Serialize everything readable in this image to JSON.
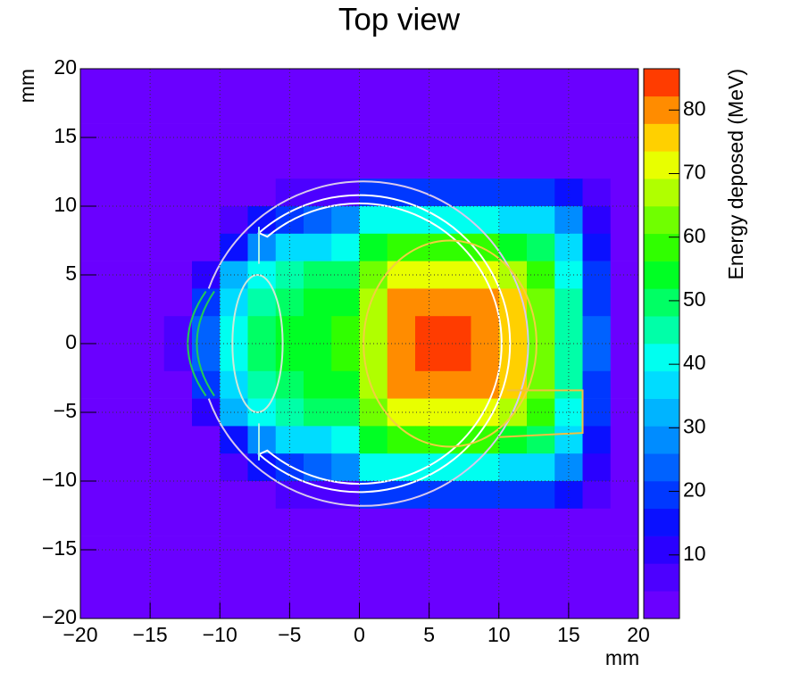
{
  "chart_data": {
    "type": "heatmap",
    "title": "Top view",
    "x_label": "mm",
    "y_label": "mm",
    "z_label": "Energy deposed (MeV)",
    "xlim": [
      -20,
      20
    ],
    "ylim": [
      -20,
      20
    ],
    "zlim": [
      0,
      86.5
    ],
    "xticks": [
      {
        "value": -20,
        "label": "−20"
      },
      {
        "value": -15,
        "label": "−15"
      },
      {
        "value": -10,
        "label": "−10"
      },
      {
        "value": -5,
        "label": "−5"
      },
      0,
      5,
      10,
      15,
      20
    ],
    "yticks": [
      {
        "value": -20,
        "label": "−20"
      },
      {
        "value": -15,
        "label": "−15"
      },
      {
        "value": -10,
        "label": "−10"
      },
      {
        "value": -5,
        "label": "−5"
      },
      0,
      5,
      10,
      15,
      20
    ],
    "zticks": [
      10,
      20,
      30,
      40,
      50,
      60,
      70,
      80
    ],
    "grid": true,
    "palette": [
      "#6a00ff",
      "#4c00ff",
      "#2a00ff",
      "#0a10ff",
      "#0038ff",
      "#0062ff",
      "#008cff",
      "#00b4ff",
      "#00dcff",
      "#00fff0",
      "#00ffa8",
      "#00ff64",
      "#00ff24",
      "#30ff00",
      "#70ff00",
      "#b0ff00",
      "#e8ff00",
      "#ffd000",
      "#ff8c00",
      "#ff3c00"
    ],
    "x": [
      -19,
      -17,
      -15,
      -13,
      -11,
      -9,
      -7,
      -5,
      -3,
      -1,
      1,
      3,
      5,
      7,
      9,
      11,
      13,
      15,
      17,
      19
    ],
    "y": [
      19,
      17,
      15,
      13,
      11,
      9,
      7,
      5,
      3,
      1,
      -1,
      -3,
      -5,
      -7,
      -9,
      -11,
      -13,
      -15,
      -17,
      -19
    ],
    "z": [
      [
        1,
        1,
        1,
        1,
        1,
        1,
        1,
        1,
        1,
        1,
        1,
        1,
        1,
        1,
        1,
        1,
        1,
        1,
        1,
        1
      ],
      [
        1,
        1,
        1,
        1,
        1,
        1,
        1,
        1,
        1,
        1,
        1,
        1,
        1,
        1,
        1,
        1,
        1,
        1,
        1,
        1
      ],
      [
        1,
        1,
        1,
        1,
        1,
        1,
        1,
        1,
        1,
        1,
        1,
        1,
        1,
        1,
        1,
        1,
        1,
        1,
        1,
        1
      ],
      [
        1,
        1,
        1,
        1,
        1,
        1,
        1,
        1,
        1,
        1,
        3,
        3,
        3,
        3,
        3,
        3,
        3,
        3,
        2,
        1
      ],
      [
        1,
        1,
        1,
        1,
        1,
        1,
        1,
        5,
        5,
        5,
        18,
        20,
        20,
        20,
        20,
        20,
        20,
        15,
        5,
        1
      ],
      [
        1,
        1,
        1,
        1,
        1,
        5,
        15,
        20,
        25,
        28,
        40,
        42,
        42,
        42,
        40,
        38,
        35,
        28,
        12,
        1
      ],
      [
        1,
        1,
        1,
        1,
        3,
        15,
        28,
        35,
        38,
        40,
        55,
        60,
        60,
        60,
        58,
        55,
        48,
        35,
        15,
        1
      ],
      [
        1,
        1,
        1,
        1,
        12,
        32,
        40,
        45,
        48,
        50,
        62,
        70,
        72,
        72,
        70,
        66,
        58,
        42,
        18,
        1
      ],
      [
        1,
        1,
        1,
        2,
        20,
        38,
        45,
        50,
        52,
        55,
        66,
        78,
        82,
        82,
        80,
        74,
        62,
        45,
        20,
        1
      ],
      [
        1,
        1,
        1,
        5,
        25,
        40,
        48,
        52,
        55,
        57,
        68,
        80,
        84,
        84,
        82,
        76,
        64,
        46,
        22,
        1
      ],
      [
        1,
        1,
        1,
        5,
        25,
        40,
        48,
        52,
        55,
        57,
        68,
        80,
        84,
        84,
        82,
        76,
        64,
        46,
        22,
        1
      ],
      [
        1,
        1,
        1,
        2,
        20,
        38,
        45,
        50,
        52,
        55,
        66,
        78,
        82,
        82,
        80,
        74,
        62,
        45,
        20,
        1
      ],
      [
        1,
        1,
        1,
        1,
        12,
        32,
        40,
        45,
        48,
        50,
        62,
        70,
        72,
        72,
        70,
        66,
        58,
        42,
        18,
        1
      ],
      [
        1,
        1,
        1,
        1,
        3,
        15,
        28,
        35,
        38,
        40,
        55,
        60,
        60,
        60,
        58,
        55,
        48,
        35,
        15,
        1
      ],
      [
        1,
        1,
        1,
        1,
        1,
        5,
        15,
        20,
        25,
        28,
        40,
        42,
        42,
        42,
        40,
        38,
        35,
        28,
        12,
        1
      ],
      [
        1,
        1,
        1,
        1,
        1,
        1,
        1,
        5,
        5,
        5,
        18,
        20,
        20,
        20,
        20,
        20,
        20,
        15,
        5,
        1
      ],
      [
        1,
        1,
        1,
        1,
        1,
        1,
        1,
        1,
        1,
        1,
        3,
        3,
        3,
        3,
        3,
        3,
        3,
        3,
        2,
        1
      ],
      [
        1,
        1,
        1,
        1,
        1,
        1,
        1,
        1,
        1,
        1,
        1,
        1,
        1,
        1,
        1,
        1,
        1,
        1,
        1,
        1
      ],
      [
        1,
        1,
        1,
        1,
        1,
        1,
        1,
        1,
        1,
        1,
        1,
        1,
        1,
        1,
        1,
        1,
        1,
        1,
        1,
        1
      ],
      [
        1,
        1,
        1,
        1,
        1,
        1,
        1,
        1,
        1,
        1,
        1,
        1,
        1,
        1,
        1,
        1,
        1,
        1,
        1,
        1
      ]
    ]
  }
}
